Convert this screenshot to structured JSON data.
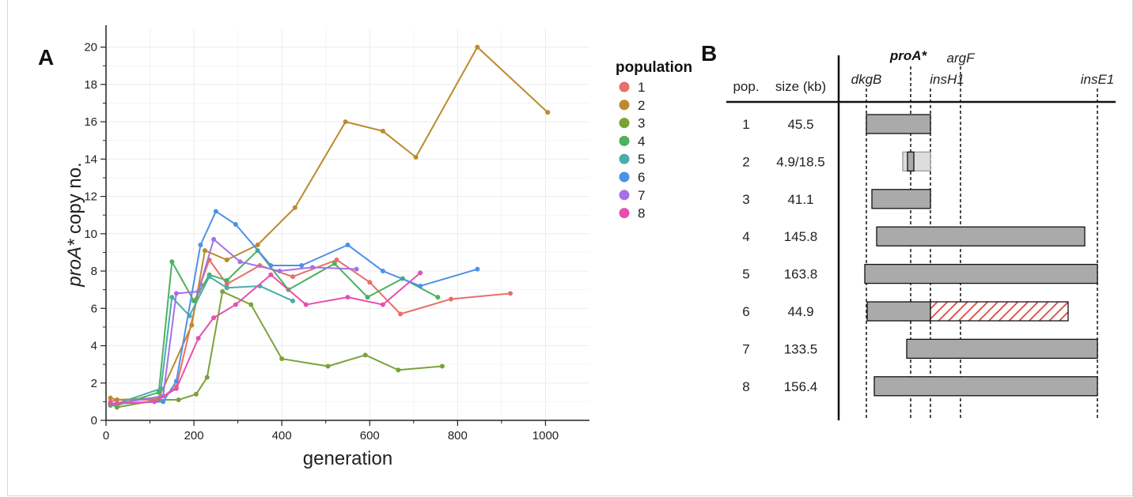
{
  "panel_a_label": "A",
  "panel_b_label": "B",
  "chart_data": [
    {
      "type": "line",
      "xlabel": "generation",
      "ylabel": "proA* copy no.",
      "xlim": [
        0,
        1100
      ],
      "ylim": [
        0,
        21
      ],
      "x_ticks": [
        0,
        200,
        400,
        600,
        800,
        1000
      ],
      "y_ticks": [
        0,
        2,
        4,
        6,
        8,
        10,
        12,
        14,
        16,
        18,
        20
      ],
      "grid": true,
      "legend_title": "population",
      "legend_position": "right",
      "series": [
        {
          "name": "1",
          "color": "#E76F6A",
          "x": [
            10,
            25,
            120,
            160,
            215,
            235,
            275,
            350,
            425,
            525,
            600,
            670,
            785,
            920
          ],
          "y": [
            1.0,
            1.1,
            1.1,
            1.8,
            7.3,
            8.6,
            7.3,
            8.3,
            7.7,
            8.6,
            7.4,
            5.7,
            6.5,
            6.8
          ]
        },
        {
          "name": "2",
          "color": "#BC8A2E",
          "x": [
            10,
            25,
            120,
            195,
            225,
            275,
            345,
            430,
            545,
            630,
            705,
            845,
            1005
          ],
          "y": [
            1.2,
            1.1,
            1.2,
            5.1,
            9.1,
            8.6,
            9.4,
            11.4,
            16.0,
            15.5,
            14.1,
            20.0,
            16.5
          ]
        },
        {
          "name": "3",
          "color": "#7BA237",
          "x": [
            10,
            25,
            120,
            165,
            205,
            230,
            265,
            330,
            400,
            505,
            590,
            665,
            765
          ],
          "y": [
            0.9,
            0.7,
            1.1,
            1.1,
            1.4,
            2.3,
            6.9,
            6.2,
            3.3,
            2.9,
            3.5,
            2.7,
            2.9
          ]
        },
        {
          "name": "4",
          "color": "#4BB25E",
          "x": [
            10,
            25,
            120,
            150,
            200,
            235,
            275,
            345,
            415,
            520,
            595,
            675,
            755
          ],
          "y": [
            0.8,
            0.8,
            1.5,
            8.5,
            6.4,
            7.8,
            7.5,
            9.1,
            7.0,
            8.4,
            6.6,
            7.6,
            6.6
          ]
        },
        {
          "name": "5",
          "color": "#49ADAA",
          "x": [
            10,
            25,
            125,
            150,
            190,
            235,
            275,
            350,
            425
          ],
          "y": [
            0.9,
            0.9,
            1.7,
            6.6,
            5.6,
            7.7,
            7.1,
            7.2,
            6.4
          ]
        },
        {
          "name": "6",
          "color": "#4D91E8",
          "x": [
            10,
            25,
            130,
            160,
            215,
            250,
            295,
            375,
            445,
            550,
            630,
            715,
            845
          ],
          "y": [
            0.9,
            0.9,
            1.0,
            2.1,
            9.4,
            11.2,
            10.5,
            8.3,
            8.3,
            9.4,
            8.0,
            7.2,
            8.1
          ]
        },
        {
          "name": "7",
          "color": "#A571E6",
          "x": [
            10,
            25,
            130,
            160,
            210,
            245,
            305,
            395,
            470,
            570
          ],
          "y": [
            0.9,
            0.9,
            1.3,
            6.8,
            6.9,
            9.7,
            8.5,
            8.0,
            8.2,
            8.1
          ]
        },
        {
          "name": "8",
          "color": "#E64FB1",
          "x": [
            10,
            25,
            110,
            160,
            210,
            245,
            295,
            375,
            455,
            550,
            630,
            715
          ],
          "y": [
            0.9,
            0.9,
            1.0,
            1.7,
            4.4,
            5.5,
            6.2,
            7.8,
            6.2,
            6.6,
            6.2,
            7.9
          ]
        }
      ]
    },
    {
      "type": "diagram",
      "header_pop": "pop.",
      "header_size": "size (kb)",
      "markers": [
        {
          "label": "dkgB",
          "bold": false
        },
        {
          "label": "proA*",
          "bold": true
        },
        {
          "label": "insH1",
          "bold": false
        },
        {
          "label": "argF",
          "bold": false
        },
        {
          "label": "insE1",
          "bold": false
        }
      ],
      "rows": [
        {
          "pop": "1",
          "size": "45.5"
        },
        {
          "pop": "2",
          "size": "4.9/18.5"
        },
        {
          "pop": "3",
          "size": "41.1"
        },
        {
          "pop": "4",
          "size": "145.8"
        },
        {
          "pop": "5",
          "size": "163.8"
        },
        {
          "pop": "6",
          "size": "44.9"
        },
        {
          "pop": "7",
          "size": "133.5"
        },
        {
          "pop": "8",
          "size": "156.4"
        }
      ],
      "colors": {
        "segment": "#AAAAAA",
        "segment_light": "#DDDDDD",
        "hatch": "#E0433A"
      }
    }
  ]
}
